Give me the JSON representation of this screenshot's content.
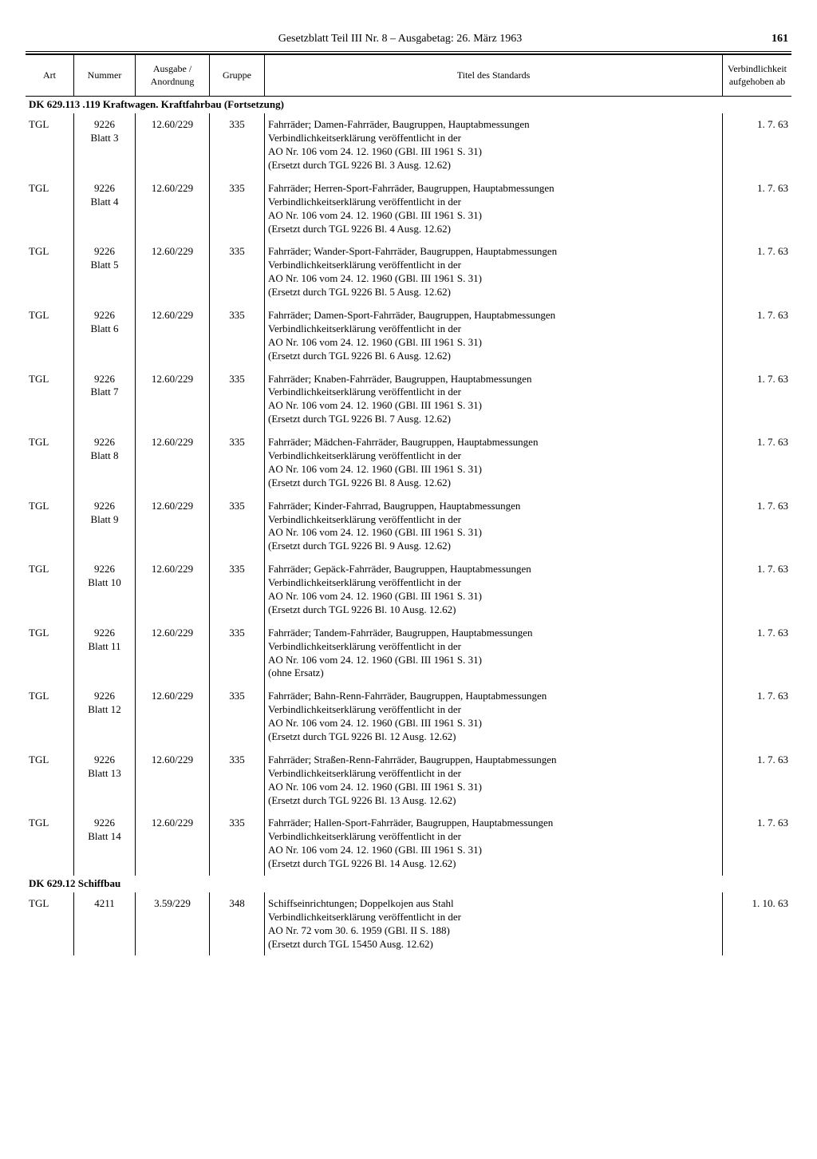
{
  "header": {
    "center": "Gesetzblatt Teil III Nr. 8 – Ausgabetag: 26. März 1963",
    "page": "161"
  },
  "columns": {
    "art": "Art",
    "nummer": "Nummer",
    "ausgabe": "Ausgabe / Anordnung",
    "gruppe": "Gruppe",
    "titel": "Titel des Standards",
    "verb": "Verbind­lichkeit aufge­hoben ab"
  },
  "sections": [
    {
      "heading": "DK 629.113 .119 Kraftwagen. Kraftfahrbau (Fortsetzung)",
      "rows": [
        {
          "art": "TGL",
          "num": "9226\nBlatt 3",
          "aus": "12.60/229",
          "grp": "335",
          "title": "Fahrräder; Damen-Fahrräder, Baugruppen, Hauptabmessungen\nVerbindlichkeitserklärung veröffentlicht in der\nAO Nr. 106 vom 24. 12. 1960 (GBl. III 1961 S. 31)\n(Ersetzt durch TGL 9226 Bl. 3 Ausg. 12.62)",
          "date": "1. 7. 63"
        },
        {
          "art": "TGL",
          "num": "9226\nBlatt 4",
          "aus": "12.60/229",
          "grp": "335",
          "title": "Fahrräder; Herren-Sport-Fahrräder, Baugruppen, Hauptabmessungen\nVerbindlichkeitserklärung veröffentlicht in der\nAO Nr. 106 vom 24. 12. 1960 (GBl. III 1961 S. 31)\n(Ersetzt durch TGL 9226 Bl. 4 Ausg. 12.62)",
          "date": "1. 7. 63"
        },
        {
          "art": "TGL",
          "num": "9226\nBlatt 5",
          "aus": "12.60/229",
          "grp": "335",
          "title": "Fahrräder; Wander-Sport-Fahrräder, Baugruppen, Hauptabmessungen\nVerbindlichkeitserklärung veröffentlicht in der\nAO Nr. 106 vom 24. 12. 1960 (GBl. III 1961 S. 31)\n(Ersetzt durch TGL 9226 Bl. 5 Ausg. 12.62)",
          "date": "1. 7. 63"
        },
        {
          "art": "TGL",
          "num": "9226\nBlatt 6",
          "aus": "12.60/229",
          "grp": "335",
          "title": "Fahrräder; Damen-Sport-Fahrräder, Baugruppen, Hauptabmessungen\nVerbindlichkeitserklärung veröffentlicht in der\nAO Nr. 106 vom 24. 12. 1960 (GBl. III 1961 S. 31)\n(Ersetzt durch TGL 9226 Bl. 6 Ausg. 12.62)",
          "date": "1. 7. 63"
        },
        {
          "art": "TGL",
          "num": "9226\nBlatt 7",
          "aus": "12.60/229",
          "grp": "335",
          "title": "Fahrräder; Knaben-Fahrräder, Baugruppen, Hauptabmessungen\nVerbindlichkeitserklärung veröffentlicht in der\nAO Nr. 106 vom 24. 12. 1960 (GBl. III 1961 S. 31)\n(Ersetzt durch TGL 9226 Bl. 7 Ausg. 12.62)",
          "date": "1. 7. 63"
        },
        {
          "art": "TGL",
          "num": "9226\nBlatt 8",
          "aus": "12.60/229",
          "grp": "335",
          "title": "Fahrräder; Mädchen-Fahrräder, Baugruppen, Hauptabmessungen\nVerbindlichkeitserklärung veröffentlicht in der\nAO Nr. 106 vom 24. 12. 1960 (GBl. III 1961 S. 31)\n(Ersetzt durch TGL 9226 Bl. 8 Ausg. 12.62)",
          "date": "1. 7. 63"
        },
        {
          "art": "TGL",
          "num": "9226\nBlatt 9",
          "aus": "12.60/229",
          "grp": "335",
          "title": "Fahrräder; Kinder-Fahrrad, Baugruppen, Hauptabmessungen\nVerbindlichkeitserklärung veröffentlicht in der\nAO Nr. 106 vom 24. 12. 1960 (GBl. III 1961 S. 31)\n(Ersetzt durch TGL 9226 Bl. 9 Ausg. 12.62)",
          "date": "1. 7. 63"
        },
        {
          "art": "TGL",
          "num": "9226\nBlatt 10",
          "aus": "12.60/229",
          "grp": "335",
          "title": "Fahrräder; Gepäck-Fahrräder, Baugruppen, Hauptabmessungen\nVerbindlichkeitserklärung veröffentlicht in der\nAO Nr. 106 vom 24. 12. 1960 (GBl. III 1961 S. 31)\n(Ersetzt durch TGL 9226 Bl. 10 Ausg. 12.62)",
          "date": "1. 7. 63"
        },
        {
          "art": "TGL",
          "num": "9226\nBlatt 11",
          "aus": "12.60/229",
          "grp": "335",
          "title": "Fahrräder; Tandem-Fahrräder, Baugruppen, Hauptabmessungen\nVerbindlichkeitserklärung veröffentlicht in der\nAO Nr. 106 vom 24. 12. 1960 (GBl. III 1961 S. 31)\n(ohne Ersatz)",
          "date": "1. 7. 63"
        },
        {
          "art": "TGL",
          "num": "9226\nBlatt 12",
          "aus": "12.60/229",
          "grp": "335",
          "title": "Fahrräder; Bahn-Renn-Fahrräder, Baugruppen, Hauptabmessungen\nVerbindlichkeitserklärung veröffentlicht in der\nAO Nr. 106 vom 24. 12. 1960 (GBl. III 1961 S. 31)\n(Ersetzt durch TGL 9226 Bl. 12 Ausg. 12.62)",
          "date": "1. 7. 63"
        },
        {
          "art": "TGL",
          "num": "9226\nBlatt 13",
          "aus": "12.60/229",
          "grp": "335",
          "title": "Fahrräder; Straßen-Renn-Fahrräder, Baugruppen, Hauptabmessungen\nVerbindlichkeitserklärung veröffentlicht in der\nAO Nr. 106 vom 24. 12. 1960 (GBl. III 1961 S. 31)\n(Ersetzt durch TGL 9226 Bl. 13 Ausg. 12.62)",
          "date": "1. 7. 63"
        },
        {
          "art": "TGL",
          "num": "9226\nBlatt 14",
          "aus": "12.60/229",
          "grp": "335",
          "title": "Fahrräder; Hallen-Sport-Fahrräder, Baugruppen, Hauptabmessungen\nVerbindlichkeitserklärung veröffentlicht in der\nAO Nr. 106 vom 24. 12. 1960 (GBl. III 1961 S. 31)\n(Ersetzt durch TGL 9226 Bl. 14 Ausg. 12.62)",
          "date": "1. 7. 63"
        }
      ]
    },
    {
      "heading": "DK 629.12 Schiffbau",
      "rows": [
        {
          "art": "TGL",
          "num": "4211",
          "aus": "3.59/229",
          "grp": "348",
          "title": "Schiffseinrichtungen; Doppelkojen aus Stahl\nVerbindlichkeitserklärung veröffentlicht in der\nAO Nr. 72 vom 30. 6. 1959 (GBl. II S. 188)\n(Ersetzt durch TGL 15450 Ausg. 12.62)",
          "date": "1. 10. 63"
        }
      ]
    }
  ]
}
